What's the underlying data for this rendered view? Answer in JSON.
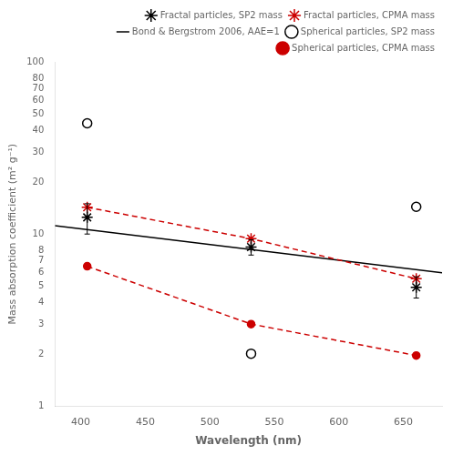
{
  "chart_data": {
    "type": "line",
    "xlabel": "Wavelength (nm)",
    "ylabel": "Mass absorption coefficient (m² g⁻¹)",
    "xlim": [
      380,
      680
    ],
    "xticks": [
      400,
      450,
      500,
      550,
      600,
      650
    ],
    "ylim": [
      1,
      100
    ],
    "yticks": [
      1,
      2,
      3,
      4,
      5,
      6,
      7,
      8,
      10,
      20,
      30,
      40,
      50,
      60,
      70,
      80,
      100
    ],
    "log": "y",
    "grid": false,
    "legend": "upper right",
    "series": [
      {
        "name": "Fractal particles, SP2 mass",
        "color": "#000000",
        "marker": "star",
        "line_style": "none",
        "x": [
          405,
          532,
          660
        ],
        "values": [
          12.5,
          8.4,
          4.9
        ],
        "error_minus": [
          2.5,
          0.85,
          0.65
        ],
        "error_plus": [
          2.5,
          0.85,
          0.75
        ]
      },
      {
        "name": "Fractal particles, CPMA mass",
        "color": "#cc0000",
        "marker": "star",
        "line_style": "dashed",
        "x": [
          405,
          532,
          660
        ],
        "values": [
          14.3,
          9.4,
          5.5
        ]
      },
      {
        "name": "Bond & Bergstrom 2006, AAE=1",
        "color": "#000000",
        "marker": "none",
        "line_style": "solid",
        "x": [
          380,
          680
        ],
        "values": [
          11.2,
          5.95
        ]
      },
      {
        "name": "Spherical particles, SP2 mass",
        "color": "#000000",
        "marker": "open_circle",
        "line_style": "none",
        "x": [
          405,
          532,
          660
        ],
        "values": [
          44.0,
          2.02,
          14.4
        ]
      },
      {
        "name": "Spherical particles, CPMA mass",
        "color": "#cc0000",
        "marker": "circle",
        "line_style": "dashed",
        "x": [
          405,
          532,
          660
        ],
        "values": [
          6.5,
          3.0,
          1.97
        ]
      }
    ]
  }
}
